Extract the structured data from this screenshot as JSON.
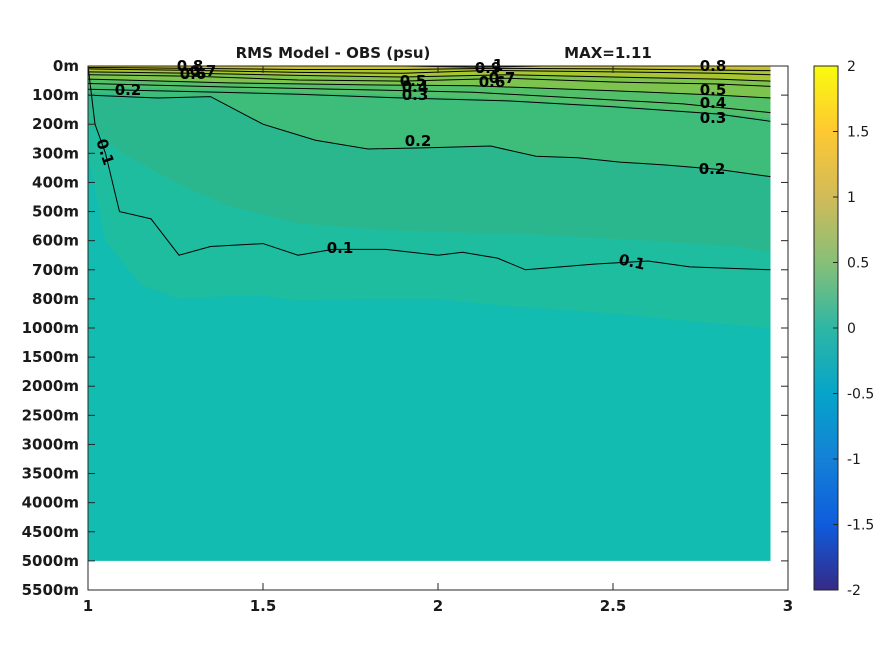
{
  "chart_data": {
    "type": "heatmap",
    "title": "RMS Model - OBS (psu)",
    "annotation": "MAX=1.11",
    "xlim": [
      1,
      3
    ],
    "x_ticks": [
      "1",
      "1.5",
      "2",
      "2.5",
      "3"
    ],
    "y_tick_labels": [
      "0m",
      "100m",
      "200m",
      "300m",
      "400m",
      "500m",
      "600m",
      "700m",
      "800m",
      "1000m",
      "1500m",
      "2000m",
      "2500m",
      "3000m",
      "3500m",
      "4000m",
      "4500m",
      "5000m",
      "5500m"
    ],
    "y_depths_m": [
      0,
      100,
      200,
      300,
      400,
      500,
      600,
      700,
      800,
      1000,
      1500,
      2000,
      2500,
      3000,
      3500,
      4000,
      4500,
      5000,
      5500
    ],
    "colorbar": {
      "range": [
        -2,
        2
      ],
      "tick_labels": [
        "2",
        "1.5",
        "1",
        "0.5",
        "0",
        "-0.5",
        "-1",
        "-1.5",
        "-2"
      ],
      "colormap": "parula"
    },
    "data_x_extent": [
      1,
      2.95
    ],
    "data_max_depth_m": 5000,
    "contours": [
      {
        "level": 0.1,
        "labels": [
          "0.1",
          "0.1",
          "0.1"
        ],
        "x": [
          1.0,
          1.02,
          1.05,
          1.09,
          1.18,
          1.26,
          1.35,
          1.5,
          1.6,
          1.7,
          1.85,
          2.0,
          2.07,
          2.17,
          2.25,
          2.35,
          2.45,
          2.6,
          2.72,
          2.95
        ],
        "depth": [
          0,
          200,
          300,
          500,
          525,
          650,
          620,
          610,
          650,
          630,
          630,
          650,
          640,
          660,
          700,
          690,
          680,
          670,
          690,
          700
        ]
      },
      {
        "level": 0.2,
        "labels": [
          "0.2",
          "0.2",
          "0.2"
        ],
        "x": [
          1.0,
          1.2,
          1.35,
          1.5,
          1.65,
          1.8,
          2.0,
          2.15,
          2.28,
          2.4,
          2.52,
          2.65,
          2.8,
          2.95
        ],
        "depth": [
          100,
          110,
          105,
          200,
          255,
          285,
          280,
          275,
          310,
          315,
          330,
          340,
          355,
          380
        ]
      },
      {
        "level": 0.3,
        "labels": [
          "0.3",
          "0.3"
        ],
        "x": [
          1.0,
          1.3,
          1.6,
          1.9,
          2.2,
          2.5,
          2.8,
          2.95
        ],
        "depth": [
          80,
          88,
          97,
          110,
          120,
          140,
          165,
          190
        ]
      },
      {
        "level": 0.4,
        "labels": [
          "0.4",
          "0.4"
        ],
        "x": [
          1.0,
          1.4,
          1.8,
          2.1,
          2.4,
          2.7,
          2.95
        ],
        "depth": [
          60,
          72,
          82,
          90,
          110,
          130,
          160
        ]
      },
      {
        "level": 0.5,
        "labels": [
          "0.5",
          "0.5"
        ],
        "x": [
          1.0,
          1.4,
          1.8,
          2.1,
          2.5,
          2.8,
          2.95
        ],
        "depth": [
          45,
          58,
          65,
          68,
          85,
          100,
          110
        ]
      },
      {
        "level": 0.6,
        "labels": [
          "0.6",
          "0.6"
        ],
        "x": [
          1.0,
          1.3,
          1.6,
          1.9,
          2.2,
          2.5,
          2.8,
          2.95
        ],
        "depth": [
          30,
          35,
          48,
          52,
          42,
          55,
          62,
          70
        ]
      },
      {
        "level": 0.7,
        "labels": [
          "0.7",
          "0.7"
        ],
        "x": [
          1.0,
          1.3,
          1.6,
          1.9,
          2.2,
          2.5,
          2.8,
          2.95
        ],
        "depth": [
          20,
          25,
          32,
          38,
          30,
          38,
          45,
          52
        ]
      },
      {
        "level": 0.8,
        "labels": [
          "0.8",
          "0.8"
        ],
        "x": [
          1.0,
          1.3,
          1.6,
          1.9,
          2.15,
          2.5,
          2.8,
          2.95
        ],
        "depth": [
          10,
          15,
          22,
          25,
          15,
          20,
          25,
          30
        ]
      },
      {
        "level": 0.9,
        "labels": [
          "0.9"
        ],
        "x": [
          1.0,
          1.3,
          1.6,
          1.9,
          2.15,
          2.5,
          2.8,
          2.95
        ],
        "depth": [
          5,
          8,
          12,
          12,
          8,
          10,
          14,
          16
        ]
      },
      {
        "level": 1,
        "labels": [
          "1"
        ],
        "x": [
          1.9,
          2.1,
          2.3
        ],
        "depth": [
          0,
          4,
          0
        ]
      }
    ],
    "fill_bands": [
      {
        "level": 0.7,
        "x": [
          1.0,
          1.3,
          1.6,
          1.9,
          2.2,
          2.5,
          2.8,
          2.95
        ],
        "depth": [
          20,
          25,
          32,
          38,
          30,
          38,
          45,
          52
        ],
        "color": "#a8c631"
      },
      {
        "level": 0.5,
        "x": [
          1.0,
          1.4,
          1.8,
          2.1,
          2.5,
          2.8,
          2.95
        ],
        "depth": [
          45,
          58,
          65,
          68,
          85,
          100,
          110
        ],
        "color": "#7dc44f"
      },
      {
        "level": 0.35,
        "x": [
          1.0,
          1.3,
          1.6,
          1.9,
          2.2,
          2.5,
          2.8,
          2.95
        ],
        "depth": [
          70,
          80,
          90,
          100,
          115,
          135,
          160,
          180
        ],
        "color": "#52c06a"
      },
      {
        "level": 0.25,
        "x": [
          1.0,
          1.2,
          1.35,
          1.5,
          1.65,
          1.8,
          2.0,
          2.15,
          2.28,
          2.4,
          2.52,
          2.65,
          2.8,
          2.95
        ],
        "depth": [
          90,
          110,
          105,
          200,
          255,
          285,
          280,
          275,
          310,
          315,
          330,
          340,
          355,
          380
        ],
        "color": "#3dbc7a"
      },
      {
        "level": 0.15,
        "x": [
          1.0,
          1.1,
          1.25,
          1.4,
          1.6,
          1.8,
          2.0,
          2.3,
          2.6,
          2.85,
          2.95
        ],
        "depth": [
          200,
          300,
          400,
          480,
          540,
          560,
          570,
          580,
          600,
          620,
          640
        ],
        "color": "#2bb78d"
      },
      {
        "level": 0.08,
        "x": [
          1.0,
          1.05,
          1.15,
          1.26,
          1.4,
          1.5,
          1.6,
          1.8,
          2.0,
          2.2,
          2.5,
          2.75,
          2.95
        ],
        "depth": [
          300,
          600,
          750,
          800,
          790,
          790,
          810,
          800,
          800,
          850,
          900,
          960,
          1000
        ],
        "color": "#1ebda0"
      }
    ],
    "colors": {
      "deep": "#13bcb0",
      "background": "#ffffff",
      "axis": "#262626",
      "contour": "#000000"
    }
  }
}
